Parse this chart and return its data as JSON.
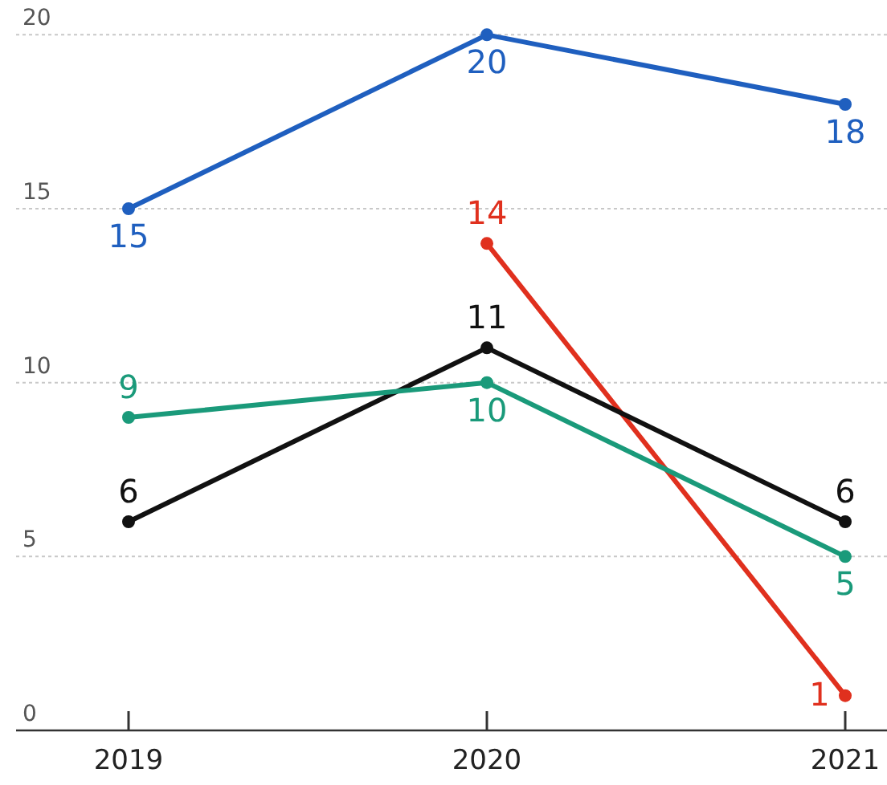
{
  "chart_data": {
    "type": "line",
    "categories": [
      "2019",
      "2020",
      "2021"
    ],
    "series": [
      {
        "color": "#1f5fbf",
        "values": [
          15,
          20,
          18
        ]
      },
      {
        "color": "#e0301e",
        "values": [
          null,
          14,
          1
        ]
      },
      {
        "color": "#111111",
        "values": [
          6,
          11,
          6
        ]
      },
      {
        "color": "#1a9a7a",
        "values": [
          9,
          10,
          5
        ]
      }
    ],
    "ylim": [
      0,
      21
    ],
    "yticks": [
      0,
      5,
      10,
      15,
      20
    ],
    "grid": "y",
    "data_labels": true,
    "marker": "circle",
    "line_style": "solid"
  }
}
